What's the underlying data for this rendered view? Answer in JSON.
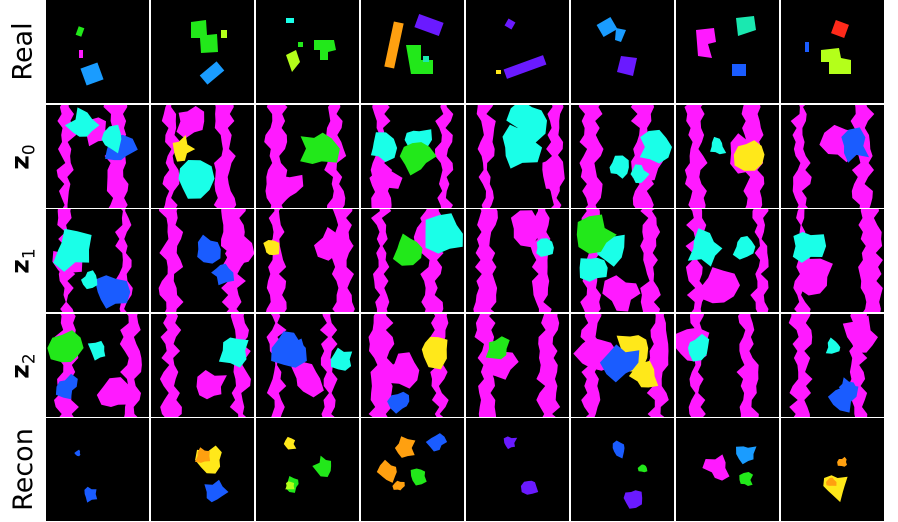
{
  "rows": [
    {
      "label": "Real",
      "math": false
    },
    {
      "label_symbol": "z",
      "label_sub": "0",
      "math": true
    },
    {
      "label_symbol": "z",
      "label_sub": "1",
      "math": true
    },
    {
      "label_symbol": "z",
      "label_sub": "2",
      "math": true
    },
    {
      "label": "Recon",
      "math": false
    }
  ],
  "columns": 8,
  "palette": {
    "magenta": "#ff1aff",
    "cyan": "#1affe8",
    "yellow": "#ffe81a",
    "green": "#22e81a",
    "lime": "#b4ff1a",
    "orange": "#ffa010",
    "blue": "#1a5cff",
    "violet": "#6a1aff",
    "red": "#ff2a1a",
    "teal": "#1ae8b0",
    "sky": "#1a9cff"
  }
}
